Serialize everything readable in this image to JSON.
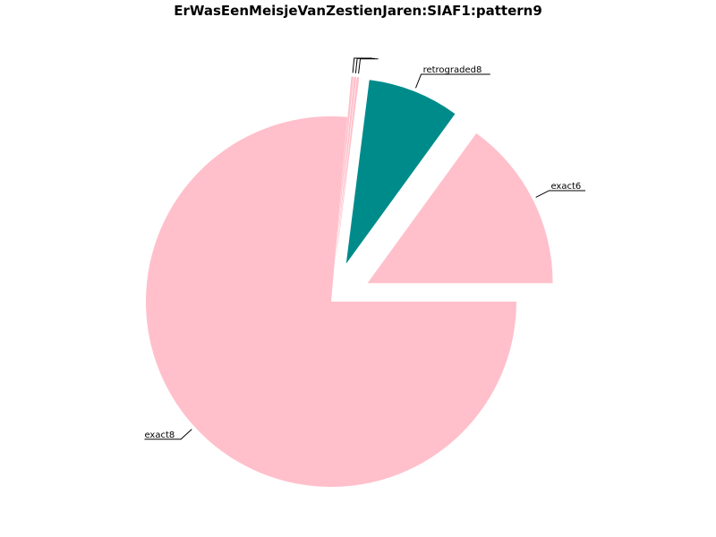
{
  "chart_data": {
    "type": "pie",
    "title": "ErWasEenMeisjeVanZestienJaren:SIAF1:pattern9",
    "slices": [
      {
        "label": "exact6",
        "value": 15.0,
        "color": "#ffc0cb",
        "exploded": true
      },
      {
        "label": "retrograded8",
        "value": 8.0,
        "color": "#008b8b",
        "exploded": true
      },
      {
        "label": "",
        "value": 0.2,
        "color": "#ffc0cb",
        "exploded": true
      },
      {
        "label": "",
        "value": 0.2,
        "color": "#ffc0cb",
        "exploded": true
      },
      {
        "label": "",
        "value": 0.2,
        "color": "#ffc0cb",
        "exploded": true
      },
      {
        "label": "exact8",
        "value": 76.4,
        "color": "#ffc0cb",
        "exploded": false
      }
    ]
  }
}
